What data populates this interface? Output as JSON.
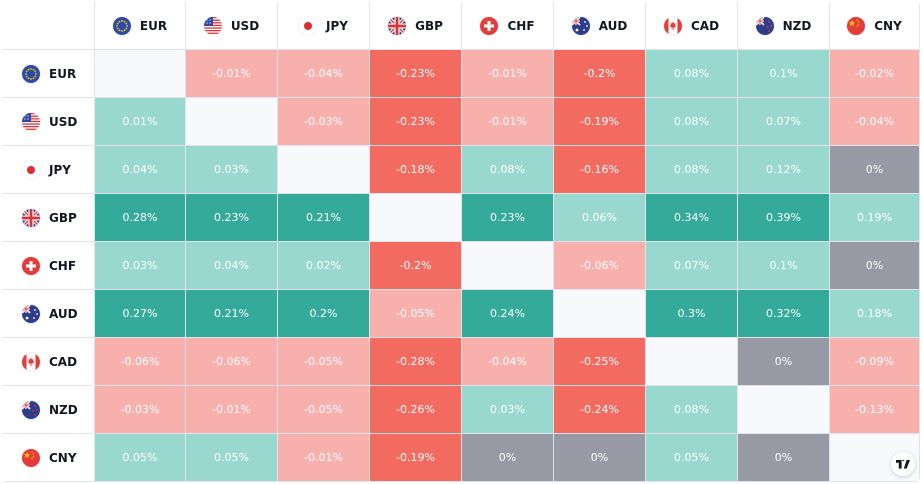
{
  "currencies": [
    "EUR",
    "USD",
    "JPY",
    "GBP",
    "CHF",
    "AUD",
    "CAD",
    "NZD",
    "CNY"
  ],
  "icons": [
    "eu-flag-icon",
    "us-flag-icon",
    "japan-flag-icon",
    "uk-flag-icon",
    "swiss-flag-icon",
    "australia-flag-icon",
    "canada-flag-icon",
    "new-zealand-flag-icon",
    "china-flag-icon"
  ],
  "colors": {
    "strong_positive": "#34aa9b",
    "weak_positive": "#98d8ce",
    "weak_negative": "#f8b0ac",
    "strong_negative": "#f26a60",
    "neutral": "#979aa5",
    "diagonal": "#f8f9fd",
    "grid": "#e0e3eb"
  },
  "chart_data": {
    "type": "heatmap",
    "rows": [
      "EUR",
      "USD",
      "JPY",
      "GBP",
      "CHF",
      "AUD",
      "CAD",
      "NZD",
      "CNY"
    ],
    "columns": [
      "EUR",
      "USD",
      "JPY",
      "GBP",
      "CHF",
      "AUD",
      "CAD",
      "NZD",
      "CNY"
    ],
    "values": [
      [
        null,
        -0.01,
        -0.04,
        -0.23,
        -0.01,
        -0.2,
        0.08,
        0.1,
        -0.02
      ],
      [
        0.01,
        null,
        -0.03,
        -0.23,
        -0.01,
        -0.19,
        0.08,
        0.07,
        -0.04
      ],
      [
        0.04,
        0.03,
        null,
        -0.18,
        0.08,
        -0.16,
        0.08,
        0.12,
        0
      ],
      [
        0.28,
        0.23,
        0.21,
        null,
        0.23,
        0.06,
        0.34,
        0.39,
        0.19
      ],
      [
        0.03,
        0.04,
        0.02,
        -0.2,
        null,
        -0.06,
        0.07,
        0.1,
        0
      ],
      [
        0.27,
        0.21,
        0.2,
        -0.05,
        0.24,
        null,
        0.3,
        0.32,
        0.18
      ],
      [
        -0.06,
        -0.06,
        -0.05,
        -0.28,
        -0.04,
        -0.25,
        null,
        0,
        -0.09
      ],
      [
        -0.03,
        -0.01,
        -0.05,
        -0.26,
        0.03,
        -0.24,
        0.08,
        null,
        -0.13
      ],
      [
        0.05,
        0.05,
        -0.01,
        -0.19,
        0,
        0,
        0.05,
        0,
        null
      ]
    ],
    "labels": [
      [
        null,
        "-0.01%",
        "-0.04%",
        "-0.23%",
        "-0.01%",
        "-0.2%",
        "0.08%",
        "0.1%",
        "-0.02%"
      ],
      [
        "0.01%",
        null,
        "-0.03%",
        "-0.23%",
        "-0.01%",
        "-0.19%",
        "0.08%",
        "0.07%",
        "-0.04%"
      ],
      [
        "0.04%",
        "0.03%",
        null,
        "-0.18%",
        "0.08%",
        "-0.16%",
        "0.08%",
        "0.12%",
        "0%"
      ],
      [
        "0.28%",
        "0.23%",
        "0.21%",
        null,
        "0.23%",
        "0.06%",
        "0.34%",
        "0.39%",
        "0.19%"
      ],
      [
        "0.03%",
        "0.04%",
        "0.02%",
        "-0.2%",
        null,
        "-0.06%",
        "0.07%",
        "0.1%",
        "0%"
      ],
      [
        "0.27%",
        "0.21%",
        "0.2%",
        "-0.05%",
        "0.24%",
        null,
        "0.3%",
        "0.32%",
        "0.18%"
      ],
      [
        "-0.06%",
        "-0.06%",
        "-0.05%",
        "-0.28%",
        "-0.04%",
        "-0.25%",
        null,
        "0%",
        "-0.09%"
      ],
      [
        "-0.03%",
        "-0.01%",
        "-0.05%",
        "-0.26%",
        "0.03%",
        "-0.24%",
        "0.08%",
        null,
        "-0.13%"
      ],
      [
        "0.05%",
        "0.05%",
        "-0.01%",
        "-0.19%",
        "0%",
        "0%",
        "0.05%",
        "0%",
        null
      ]
    ],
    "tiers": [
      [
        null,
        "weak_negative",
        "weak_negative",
        "strong_negative",
        "weak_negative",
        "strong_negative",
        "weak_positive",
        "weak_positive",
        "weak_negative"
      ],
      [
        "weak_positive",
        null,
        "weak_negative",
        "strong_negative",
        "weak_negative",
        "strong_negative",
        "weak_positive",
        "weak_positive",
        "weak_negative"
      ],
      [
        "weak_positive",
        "weak_positive",
        null,
        "strong_negative",
        "weak_positive",
        "strong_negative",
        "weak_positive",
        "weak_positive",
        "neutral"
      ],
      [
        "strong_positive",
        "strong_positive",
        "strong_positive",
        null,
        "strong_positive",
        "weak_positive",
        "strong_positive",
        "strong_positive",
        "weak_positive"
      ],
      [
        "weak_positive",
        "weak_positive",
        "weak_positive",
        "strong_negative",
        null,
        "weak_negative",
        "weak_positive",
        "weak_positive",
        "neutral"
      ],
      [
        "strong_positive",
        "strong_positive",
        "strong_positive",
        "weak_negative",
        "strong_positive",
        null,
        "strong_positive",
        "strong_positive",
        "weak_positive"
      ],
      [
        "weak_negative",
        "weak_negative",
        "weak_negative",
        "strong_negative",
        "weak_negative",
        "strong_negative",
        null,
        "neutral",
        "weak_negative"
      ],
      [
        "weak_negative",
        "weak_negative",
        "weak_negative",
        "strong_negative",
        "weak_positive",
        "strong_negative",
        "weak_positive",
        null,
        "weak_negative"
      ],
      [
        "weak_positive",
        "weak_positive",
        "weak_negative",
        "strong_negative",
        "neutral",
        "neutral",
        "weak_positive",
        "neutral",
        null
      ]
    ],
    "unit": "%"
  }
}
